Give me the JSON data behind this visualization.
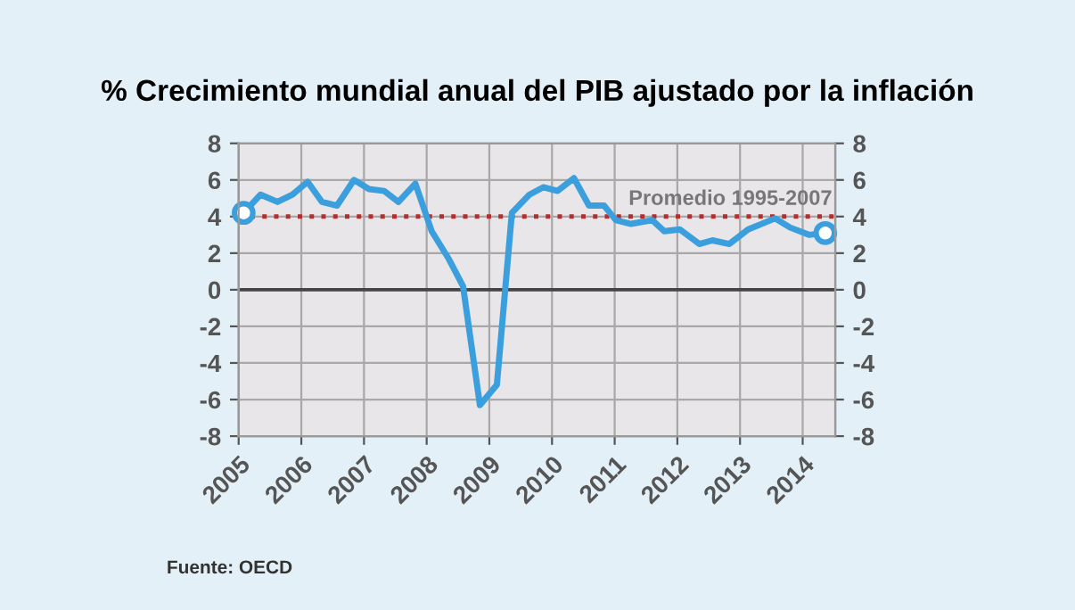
{
  "chart_data": {
    "type": "line",
    "title": "% Crecimiento mundial anual del PIB ajustado por la inflación",
    "annotations": [
      "Fuente: OECD"
    ],
    "series": [
      {
        "color": "#3a9fdc",
        "x": [
          2005.08,
          2005.35,
          2005.62,
          2005.86,
          2006.1,
          2006.33,
          2006.57,
          2006.84,
          2007.08,
          2007.32,
          2007.55,
          2007.82,
          2008.08,
          2008.35,
          2008.58,
          2008.85,
          2009.12,
          2009.36,
          2009.64,
          2009.86,
          2010.09,
          2010.35,
          2010.59,
          2010.83,
          2011.02,
          2011.26,
          2011.6,
          2011.79,
          2012.04,
          2012.35,
          2012.56,
          2012.83,
          2013.13,
          2013.56,
          2013.8,
          2014.1,
          2014.36
        ],
        "values": [
          4.2,
          5.2,
          4.8,
          5.2,
          5.9,
          4.8,
          4.6,
          6.0,
          5.5,
          5.4,
          4.8,
          5.8,
          3.2,
          1.7,
          0.2,
          -6.3,
          -5.2,
          4.2,
          5.2,
          5.6,
          5.4,
          6.1,
          4.6,
          4.6,
          3.8,
          3.6,
          3.8,
          3.2,
          3.3,
          2.5,
          2.7,
          2.5,
          3.3,
          3.9,
          3.4,
          3.0,
          3.1
        ]
      },
      {
        "type": "scatter",
        "color": "#3a9fdc",
        "marker": "circle",
        "x": [
          2005.08,
          2014.36
        ],
        "values": [
          4.2,
          3.1
        ]
      }
    ],
    "xlim": [
      2005,
      2014.52
    ],
    "xticks": [
      2005,
      2006,
      2007,
      2008,
      2009,
      2010,
      2011,
      2012,
      2013,
      2014
    ],
    "ylim": [
      -8,
      8
    ],
    "yticks": [
      -8,
      -6,
      -4,
      -2,
      0,
      2,
      4,
      6,
      8
    ],
    "y2lim": [
      -8,
      8
    ],
    "y2ticks": [
      -8,
      -6,
      -4,
      -2,
      0,
      2,
      4,
      6,
      8
    ],
    "ref_lines": [
      {
        "axis": "y",
        "value": 4,
        "label": "Promedio 1995-2007",
        "color": "#b03030",
        "line_style": "dotted"
      },
      {
        "axis": "y",
        "value": 0,
        "color": "#444444",
        "line_style": "solid"
      }
    ],
    "grid": true,
    "legend": false
  }
}
